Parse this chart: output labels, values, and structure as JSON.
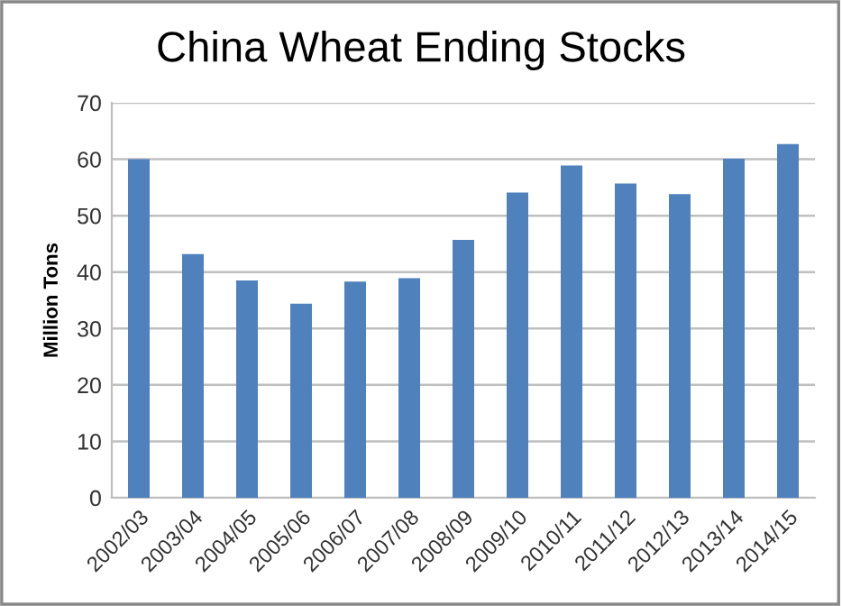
{
  "chart_data": {
    "type": "bar",
    "title": "China Wheat Ending Stocks",
    "ylabel": "Million Tons",
    "categories": [
      "2002/03",
      "2003/04",
      "2004/05",
      "2005/06",
      "2006/07",
      "2007/08",
      "2008/09",
      "2009/10",
      "2010/11",
      "2011/12",
      "2012/13",
      "2013/14",
      "2014/15"
    ],
    "values": [
      60.0,
      43.2,
      38.5,
      34.4,
      38.3,
      38.9,
      45.7,
      54.1,
      58.9,
      55.7,
      53.8,
      60.1,
      62.7
    ],
    "color": "#4f81bd",
    "ylim": [
      0,
      70
    ],
    "yticks": [
      0,
      10,
      20,
      30,
      40,
      50,
      60,
      70
    ],
    "grid": "y"
  }
}
